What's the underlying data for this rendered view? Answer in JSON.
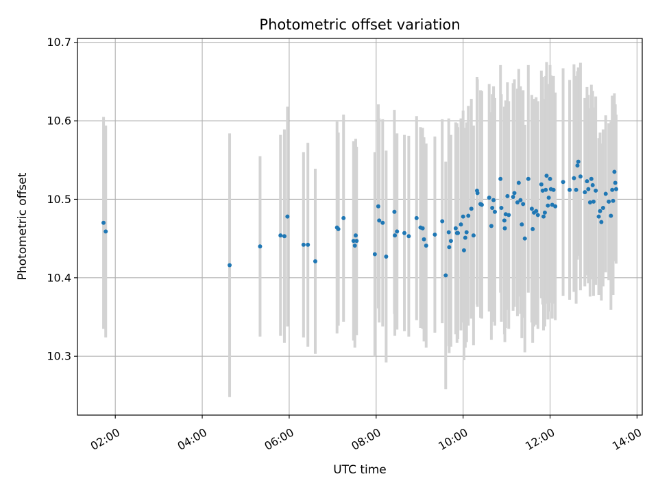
{
  "chart_data": {
    "type": "scatter",
    "title": "Photometric offset variation",
    "xlabel": "UTC time",
    "ylabel": "Photometric offset",
    "x_unit": "hours UTC",
    "xlim": [
      1.13,
      14.12
    ],
    "ylim": [
      10.225,
      10.705
    ],
    "xticks": [
      {
        "value": 2,
        "label": "02:00"
      },
      {
        "value": 4,
        "label": "04:00"
      },
      {
        "value": 6,
        "label": "06:00"
      },
      {
        "value": 8,
        "label": "08:00"
      },
      {
        "value": 10,
        "label": "10:00"
      },
      {
        "value": 12,
        "label": "12:00"
      },
      {
        "value": 14,
        "label": "14:00"
      }
    ],
    "yticks": [
      {
        "value": 10.3,
        "label": "10.3"
      },
      {
        "value": 10.4,
        "label": "10.4"
      },
      {
        "value": 10.5,
        "label": "10.5"
      },
      {
        "value": 10.6,
        "label": "10.6"
      },
      {
        "value": 10.7,
        "label": "10.7"
      }
    ],
    "grid": true,
    "point_color": "#1f77b4",
    "errorbar_color": "#d3d3d3",
    "points": [
      [
        1.73,
        10.47,
        0.135
      ],
      [
        1.78,
        10.459,
        0.135
      ],
      [
        4.63,
        10.416,
        0.168
      ],
      [
        5.33,
        10.44,
        0.115
      ],
      [
        5.8,
        10.454,
        0.128
      ],
      [
        5.89,
        10.453,
        0.136
      ],
      [
        5.96,
        10.478,
        0.14
      ],
      [
        6.33,
        10.442,
        0.118
      ],
      [
        6.43,
        10.442,
        0.13
      ],
      [
        6.6,
        10.421,
        0.118
      ],
      [
        7.1,
        10.464,
        0.135
      ],
      [
        7.13,
        10.462,
        0.123
      ],
      [
        7.25,
        10.476,
        0.132
      ],
      [
        7.48,
        10.447,
        0.127
      ],
      [
        7.51,
        10.441,
        0.13
      ],
      [
        7.53,
        10.454,
        0.123
      ],
      [
        7.55,
        10.447,
        0.12
      ],
      [
        7.97,
        10.43,
        0.13
      ],
      [
        8.05,
        10.491,
        0.13
      ],
      [
        8.07,
        10.473,
        0.13
      ],
      [
        8.15,
        10.47,
        0.132
      ],
      [
        8.23,
        10.427,
        0.135
      ],
      [
        8.42,
        10.484,
        0.13
      ],
      [
        8.43,
        10.454,
        0.128
      ],
      [
        8.48,
        10.459,
        0.125
      ],
      [
        8.65,
        10.457,
        0.125
      ],
      [
        8.75,
        10.453,
        0.128
      ],
      [
        8.93,
        10.476,
        0.13
      ],
      [
        9.02,
        10.464,
        0.128
      ],
      [
        9.07,
        10.463,
        0.128
      ],
      [
        9.1,
        10.449,
        0.13
      ],
      [
        9.15,
        10.441,
        0.13
      ],
      [
        9.35,
        10.455,
        0.125
      ],
      [
        9.52,
        10.472,
        0.13
      ],
      [
        9.6,
        10.403,
        0.145
      ],
      [
        9.67,
        10.458,
        0.145
      ],
      [
        9.68,
        10.439,
        0.135
      ],
      [
        9.72,
        10.447,
        0.135
      ],
      [
        9.83,
        10.463,
        0.135
      ],
      [
        9.86,
        10.457,
        0.14
      ],
      [
        9.88,
        10.457,
        0.135
      ],
      [
        9.95,
        10.468,
        0.135
      ],
      [
        10.0,
        10.478,
        0.135
      ],
      [
        10.02,
        10.435,
        0.14
      ],
      [
        10.05,
        10.451,
        0.14
      ],
      [
        10.08,
        10.458,
        0.14
      ],
      [
        10.12,
        10.479,
        0.14
      ],
      [
        10.19,
        10.488,
        0.14
      ],
      [
        10.24,
        10.454,
        0.14
      ],
      [
        10.32,
        10.511,
        0.145
      ],
      [
        10.33,
        10.508,
        0.145
      ],
      [
        10.4,
        10.494,
        0.145
      ],
      [
        10.43,
        10.493,
        0.145
      ],
      [
        10.6,
        10.502,
        0.145
      ],
      [
        10.65,
        10.466,
        0.145
      ],
      [
        10.67,
        10.489,
        0.145
      ],
      [
        10.7,
        10.499,
        0.145
      ],
      [
        10.73,
        10.484,
        0.145
      ],
      [
        10.86,
        10.526,
        0.145
      ],
      [
        10.88,
        10.489,
        0.145
      ],
      [
        10.95,
        10.473,
        0.145
      ],
      [
        10.96,
        10.463,
        0.145
      ],
      [
        10.98,
        10.481,
        0.145
      ],
      [
        11.02,
        10.504,
        0.145
      ],
      [
        11.05,
        10.48,
        0.145
      ],
      [
        11.15,
        10.503,
        0.145
      ],
      [
        11.18,
        10.508,
        0.145
      ],
      [
        11.25,
        10.496,
        0.145
      ],
      [
        11.28,
        10.521,
        0.145
      ],
      [
        11.32,
        10.499,
        0.145
      ],
      [
        11.35,
        10.468,
        0.145
      ],
      [
        11.38,
        10.494,
        0.145
      ],
      [
        11.42,
        10.45,
        0.145
      ],
      [
        11.5,
        10.526,
        0.145
      ],
      [
        11.58,
        10.488,
        0.145
      ],
      [
        11.6,
        10.462,
        0.145
      ],
      [
        11.63,
        10.483,
        0.145
      ],
      [
        11.68,
        10.485,
        0.145
      ],
      [
        11.72,
        10.48,
        0.145
      ],
      [
        11.8,
        10.519,
        0.145
      ],
      [
        11.83,
        10.511,
        0.145
      ],
      [
        11.85,
        10.478,
        0.145
      ],
      [
        11.88,
        10.483,
        0.145
      ],
      [
        11.9,
        10.512,
        0.145
      ],
      [
        11.92,
        10.53,
        0.145
      ],
      [
        11.95,
        10.492,
        0.145
      ],
      [
        11.97,
        10.502,
        0.145
      ],
      [
        12.0,
        10.526,
        0.145
      ],
      [
        12.02,
        10.513,
        0.145
      ],
      [
        12.05,
        10.493,
        0.145
      ],
      [
        12.08,
        10.512,
        0.145
      ],
      [
        12.12,
        10.491,
        0.145
      ],
      [
        12.3,
        10.522,
        0.145
      ],
      [
        12.45,
        10.512,
        0.14
      ],
      [
        12.55,
        10.527,
        0.145
      ],
      [
        12.6,
        10.512,
        0.145
      ],
      [
        12.63,
        10.543,
        0.12
      ],
      [
        12.65,
        10.548,
        0.12
      ],
      [
        12.7,
        10.529,
        0.145
      ],
      [
        12.8,
        10.509,
        0.12
      ],
      [
        12.85,
        10.523,
        0.12
      ],
      [
        12.88,
        10.513,
        0.12
      ],
      [
        12.92,
        10.496,
        0.12
      ],
      [
        12.95,
        10.526,
        0.12
      ],
      [
        12.98,
        10.518,
        0.12
      ],
      [
        13.0,
        10.497,
        0.12
      ],
      [
        13.05,
        10.511,
        0.12
      ],
      [
        13.12,
        10.478,
        0.1
      ],
      [
        13.15,
        10.485,
        0.1
      ],
      [
        13.18,
        10.471,
        0.1
      ],
      [
        13.22,
        10.489,
        0.1
      ],
      [
        13.28,
        10.507,
        0.1
      ],
      [
        13.35,
        10.497,
        0.1
      ],
      [
        13.4,
        10.479,
        0.12
      ],
      [
        13.43,
        10.512,
        0.12
      ],
      [
        13.45,
        10.498,
        0.12
      ],
      [
        13.48,
        10.535,
        0.1
      ],
      [
        13.5,
        10.521,
        0.1
      ],
      [
        13.52,
        10.513,
        0.095
      ]
    ]
  }
}
